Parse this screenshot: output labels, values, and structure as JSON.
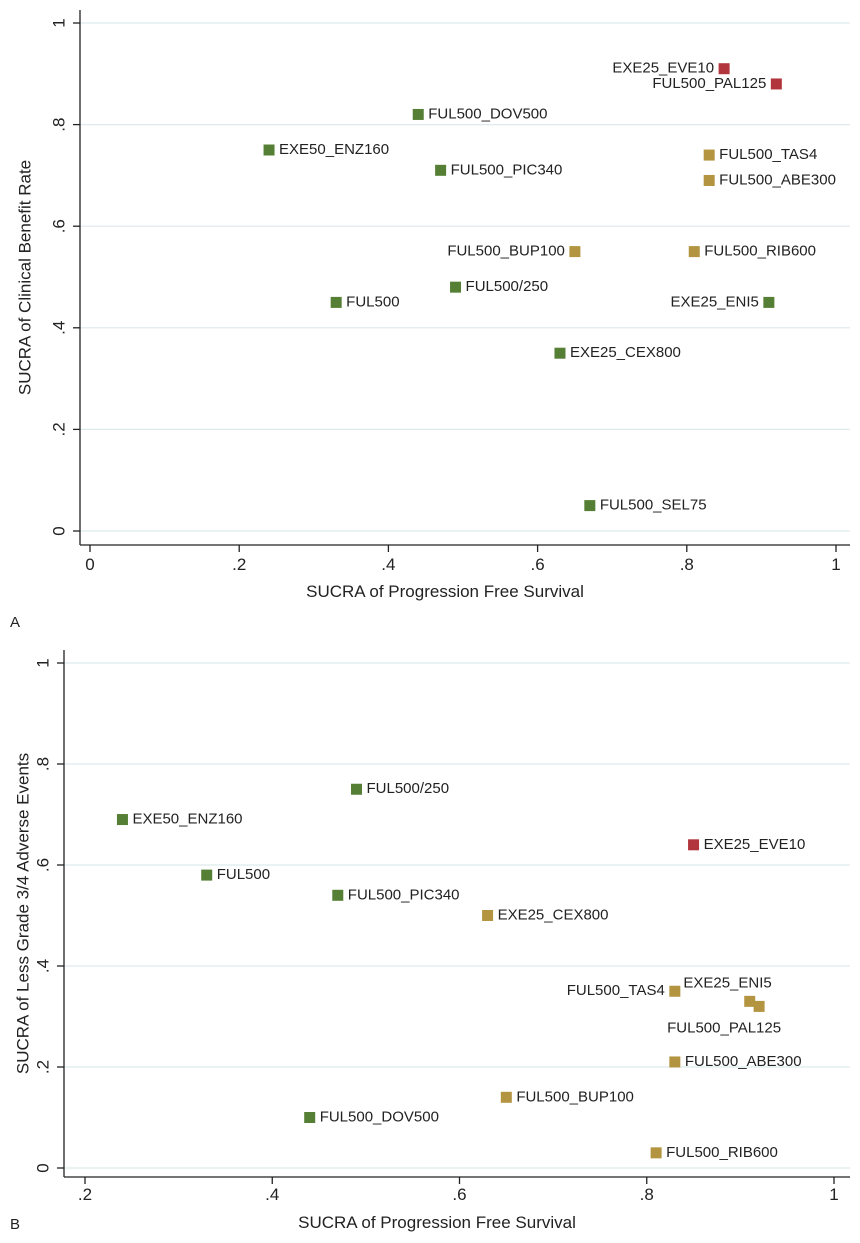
{
  "panel_labels": [
    "A",
    "B"
  ],
  "colors": {
    "green": "#557f35",
    "gold": "#b39440",
    "red": "#b2343c",
    "grid": "#dfe9ee",
    "axis": "#222222"
  },
  "chart_data": [
    {
      "type": "scatter",
      "panel": "A",
      "xlabel": "SUCRA of Progression Free Survival",
      "ylabel": "SUCRA of Clinical Benefit Rate",
      "xlim": [
        0,
        1
      ],
      "ylim": [
        0,
        1
      ],
      "xticks": [
        0,
        0.2,
        0.4,
        0.6,
        0.8,
        1
      ],
      "xtick_labels": [
        "0",
        ".2",
        ".4",
        ".6",
        ".8",
        "1"
      ],
      "yticks": [
        0,
        0.2,
        0.4,
        0.6,
        0.8,
        1
      ],
      "ytick_labels": [
        "0",
        ".2",
        ".4",
        ".6",
        ".8",
        "1"
      ],
      "grid": "horizontal",
      "points": [
        {
          "label": "EXE25_EVE10",
          "x": 0.85,
          "y": 0.91,
          "color": "red",
          "label_side": "left"
        },
        {
          "label": "FUL500_PAL125",
          "x": 0.92,
          "y": 0.88,
          "color": "red",
          "label_side": "left"
        },
        {
          "label": "FUL500_DOV500",
          "x": 0.44,
          "y": 0.82,
          "color": "green",
          "label_side": "right"
        },
        {
          "label": "EXE50_ENZ160",
          "x": 0.24,
          "y": 0.75,
          "color": "green",
          "label_side": "right"
        },
        {
          "label": "FUL500_TAS4",
          "x": 0.83,
          "y": 0.74,
          "color": "gold",
          "label_side": "right"
        },
        {
          "label": "FUL500_PIC340",
          "x": 0.47,
          "y": 0.71,
          "color": "green",
          "label_side": "right"
        },
        {
          "label": "FUL500_ABE300",
          "x": 0.83,
          "y": 0.69,
          "color": "gold",
          "label_side": "right"
        },
        {
          "label": "FUL500_BUP100",
          "x": 0.65,
          "y": 0.55,
          "color": "gold",
          "label_side": "left"
        },
        {
          "label": "FUL500_RIB600",
          "x": 0.81,
          "y": 0.55,
          "color": "gold",
          "label_side": "right"
        },
        {
          "label": "FUL500/250",
          "x": 0.49,
          "y": 0.48,
          "color": "green",
          "label_side": "right"
        },
        {
          "label": "FUL500",
          "x": 0.33,
          "y": 0.45,
          "color": "green",
          "label_side": "right"
        },
        {
          "label": "EXE25_ENI5",
          "x": 0.91,
          "y": 0.45,
          "color": "green",
          "label_side": "left"
        },
        {
          "label": "EXE25_CEX800",
          "x": 0.63,
          "y": 0.35,
          "color": "green",
          "label_side": "right"
        },
        {
          "label": "FUL500_SEL75",
          "x": 0.67,
          "y": 0.05,
          "color": "green",
          "label_side": "right"
        }
      ]
    },
    {
      "type": "scatter",
      "panel": "B",
      "xlabel": "SUCRA of Progression Free Survival",
      "ylabel": "SUCRA of Less Grade 3/4 Adverse Events",
      "xlim": [
        0.2,
        1
      ],
      "ylim": [
        0,
        1
      ],
      "xticks": [
        0.2,
        0.4,
        0.6,
        0.8,
        1
      ],
      "xtick_labels": [
        ".2",
        ".4",
        ".6",
        ".8",
        "1"
      ],
      "yticks": [
        0,
        0.2,
        0.4,
        0.6,
        0.8,
        1
      ],
      "ytick_labels": [
        "0",
        ".2",
        ".4",
        ".6",
        ".8",
        "1"
      ],
      "grid": "horizontal",
      "points": [
        {
          "label": "FUL500/250",
          "x": 0.49,
          "y": 0.75,
          "color": "green",
          "label_side": "right"
        },
        {
          "label": "EXE50_ENZ160",
          "x": 0.24,
          "y": 0.69,
          "color": "green",
          "label_side": "right"
        },
        {
          "label": "EXE25_EVE10",
          "x": 0.85,
          "y": 0.64,
          "color": "red",
          "label_side": "right"
        },
        {
          "label": "FUL500",
          "x": 0.33,
          "y": 0.58,
          "color": "green",
          "label_side": "right"
        },
        {
          "label": "FUL500_PIC340",
          "x": 0.47,
          "y": 0.54,
          "color": "green",
          "label_side": "right"
        },
        {
          "label": "EXE25_CEX800",
          "x": 0.63,
          "y": 0.5,
          "color": "gold",
          "label_side": "right"
        },
        {
          "label": "FUL500_TAS4",
          "x": 0.83,
          "y": 0.35,
          "color": "gold",
          "label_side": "left"
        },
        {
          "label": "EXE25_ENI5",
          "x": 0.91,
          "y": 0.33,
          "color": "gold",
          "label_side": "above"
        },
        {
          "label": "FUL500_PAL125",
          "x": 0.92,
          "y": 0.32,
          "color": "gold",
          "label_side": "below"
        },
        {
          "label": "FUL500_ABE300",
          "x": 0.83,
          "y": 0.21,
          "color": "gold",
          "label_side": "right"
        },
        {
          "label": "FUL500_BUP100",
          "x": 0.65,
          "y": 0.14,
          "color": "gold",
          "label_side": "right"
        },
        {
          "label": "FUL500_DOV500",
          "x": 0.44,
          "y": 0.1,
          "color": "green",
          "label_side": "right"
        },
        {
          "label": "FUL500_RIB600",
          "x": 0.81,
          "y": 0.03,
          "color": "gold",
          "label_side": "right"
        }
      ]
    }
  ]
}
